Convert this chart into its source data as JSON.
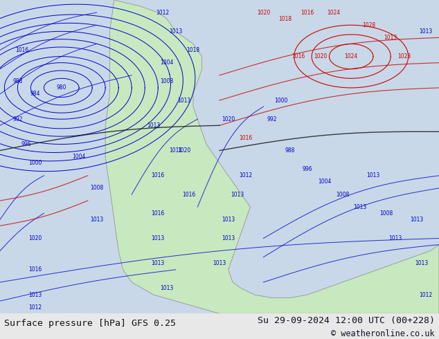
{
  "title_left": "Surface pressure [hPa] GFS 0.25",
  "title_right": "Su 29-09-2024 12:00 UTC (00+228)",
  "copyright": "© weatheronline.co.uk",
  "bg_color": "#c8d8e8",
  "land_color": "#c8e8c0",
  "border_color": "#888888",
  "text_color_left": "#111111",
  "text_color_right": "#111122",
  "copyright_color": "#111122",
  "bottom_bar_color": "#e8e8e8",
  "figsize": [
    6.34,
    4.9
  ],
  "dpi": 100,
  "font_size_labels": 9.5,
  "font_size_copyright": 8.5,
  "contour_blue_color": "#0000cc",
  "contour_red_color": "#cc0000",
  "contour_black_color": "#111111"
}
